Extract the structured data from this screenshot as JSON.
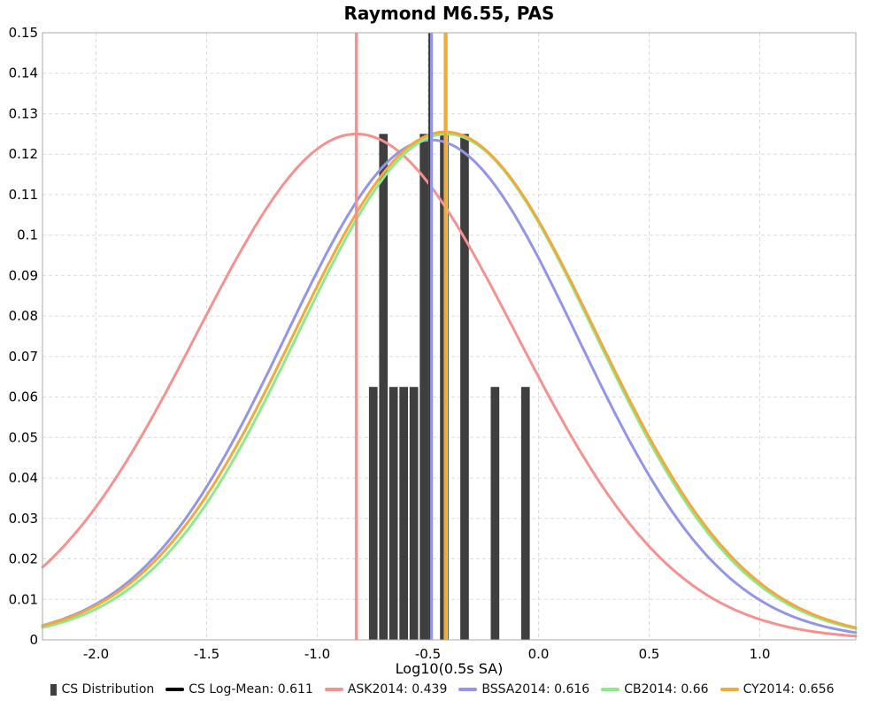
{
  "title": "Raymond M6.55, PAS",
  "axes": {
    "x": {
      "label": "Log10(0.5s SA)",
      "ticks": [
        {
          "value": -2.0,
          "label": "-2.0"
        },
        {
          "value": -1.5,
          "label": "-1.5"
        },
        {
          "value": -1.0,
          "label": "-1.0"
        },
        {
          "value": -0.5,
          "label": "-0.5"
        },
        {
          "value": 0.0,
          "label": "0.0"
        },
        {
          "value": 0.5,
          "label": "0.5"
        },
        {
          "value": 1.0,
          "label": "1.0"
        }
      ]
    },
    "y": {
      "label": "",
      "ticks": [
        {
          "value": 0,
          "label": "0"
        },
        {
          "value": 0.01,
          "label": "0.01"
        },
        {
          "value": 0.02,
          "label": "0.02"
        },
        {
          "value": 0.03,
          "label": "0.03"
        },
        {
          "value": 0.04,
          "label": "0.04"
        },
        {
          "value": 0.05,
          "label": "0.05"
        },
        {
          "value": 0.06,
          "label": "0.06"
        },
        {
          "value": 0.07,
          "label": "0.07"
        },
        {
          "value": 0.08,
          "label": "0.08"
        },
        {
          "value": 0.09,
          "label": "0.09"
        },
        {
          "value": 0.1,
          "label": "0.1"
        },
        {
          "value": 0.11,
          "label": "0.11"
        },
        {
          "value": 0.12,
          "label": "0.12"
        },
        {
          "value": 0.13,
          "label": "0.13"
        },
        {
          "value": 0.14,
          "label": "0.14"
        },
        {
          "value": 0.15,
          "label": "0.15"
        }
      ]
    }
  },
  "legend": [
    {
      "label": "CS Distribution",
      "marker": "bar",
      "color": "#3F3F3F"
    },
    {
      "label": "CS Log-Mean: 0.611",
      "marker": "line",
      "color": "#000000"
    },
    {
      "label": "ASK2014: 0.439",
      "marker": "line",
      "color": "#F5918F"
    },
    {
      "label": "BSSA2014: 0.616",
      "marker": "line",
      "color": "#9295E9"
    },
    {
      "label": "CB2014: 0.66",
      "marker": "line",
      "color": "#8EE98E"
    },
    {
      "label": "CY2014: 0.656",
      "marker": "line",
      "color": "#F3A83B"
    }
  ],
  "chart_data": {
    "type": "histogram+gaussian-curves",
    "title": "Raymond M6.55, PAS",
    "xlabel": "Log10(0.5s SA)",
    "ylabel": "",
    "xlim": [
      -2.242,
      1.434
    ],
    "ylim": [
      0,
      0.15
    ],
    "grid": {
      "style": "dashed",
      "x_step": 0.5,
      "y_step": 0.01,
      "color": "#DCDCDC"
    },
    "legend_position": "bottom",
    "histogram": {
      "name": "CS Distribution",
      "color": "#3F3F3F",
      "bin_start": -0.77,
      "bin_width": 0.04588,
      "heights": [
        0.0625,
        0.125,
        0.0625,
        0.0625,
        0.0625,
        0.125,
        0,
        0.125,
        0,
        0.125,
        0,
        0,
        0.0625,
        0,
        0,
        0.0625
      ]
    },
    "curves": [
      {
        "name": "ASK2014",
        "color": "#F5918F",
        "mean": -0.8233,
        "sigma": 0.72,
        "peak": 0.125
      },
      {
        "name": "BSSA2014",
        "color": "#9295E9",
        "mean": -0.4845,
        "sigma": 0.66,
        "peak": 0.1235
      },
      {
        "name": "CB2014",
        "color": "#8EE98E",
        "mean": -0.4155,
        "sigma": 0.67,
        "peak": 0.125
      },
      {
        "name": "CY2014",
        "color": "#F3A83B",
        "mean": -0.4216,
        "sigma": 0.68,
        "peak": 0.1255
      }
    ],
    "vlines": [
      {
        "name": "CS Log-Mean",
        "value": 0.611,
        "x": -0.4926,
        "color": "#000000",
        "line_width": 2
      },
      {
        "name": "ASK2014",
        "value": 0.439,
        "x": -0.8233,
        "color": "#F5918F",
        "line_width": 3.5
      },
      {
        "name": "BSSA2014",
        "value": 0.616,
        "x": -0.4845,
        "color": "#9295E9",
        "line_width": 3.5
      },
      {
        "name": "CB2014",
        "value": 0.66,
        "x": -0.4155,
        "color": "#8EE98E",
        "line_width": 3
      },
      {
        "name": "CY2014",
        "value": 0.656,
        "x": -0.4216,
        "color": "#F3A83B",
        "line_width": 3.5
      }
    ]
  }
}
